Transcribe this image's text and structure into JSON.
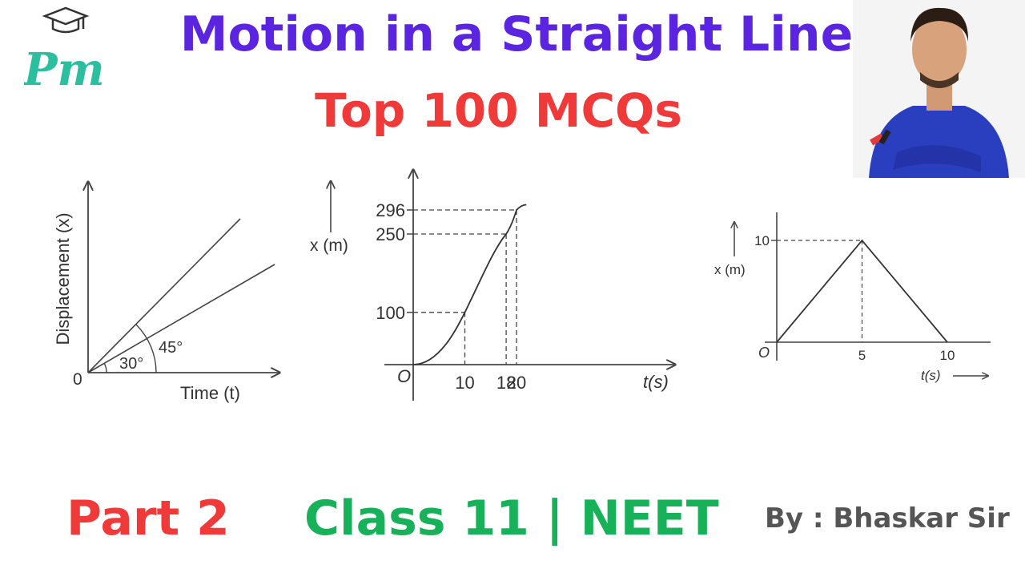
{
  "header": {
    "title": "Motion in a Straight Line",
    "subtitle": "Top 100 MCQs",
    "logo_text": "Pm"
  },
  "figures": {
    "fig1": {
      "ylabel": "Displacement (x)",
      "xlabel": "Time (t)",
      "origin": "0",
      "angles": [
        "30°",
        "45°"
      ]
    },
    "fig2": {
      "ylabel": "x (m)",
      "xlabel": "t(s)",
      "origin": "O",
      "y_ticks": [
        "100",
        "250",
        "296"
      ],
      "x_ticks": [
        "10",
        "18",
        "20"
      ]
    },
    "fig3": {
      "ylabel": "x (m)",
      "xlabel": "t(s)",
      "origin": "O",
      "y_ticks": [
        "10"
      ],
      "x_ticks": [
        "5",
        "10"
      ]
    }
  },
  "chart_data": [
    {
      "type": "line",
      "xlabel": "Time (t)",
      "ylabel": "Displacement (x)",
      "series": [
        {
          "slope_angle_deg": 45
        },
        {
          "slope_angle_deg": 30
        }
      ],
      "annotations": [
        "30°",
        "45°"
      ]
    },
    {
      "type": "line",
      "xlabel": "t(s)",
      "ylabel": "x (m)",
      "x": [
        0,
        10,
        18,
        20
      ],
      "y": [
        0,
        100,
        250,
        296
      ],
      "xlim": [
        0,
        21
      ],
      "ylim": [
        0,
        300
      ]
    },
    {
      "type": "line",
      "xlabel": "t(s)",
      "ylabel": "x (m)",
      "x": [
        0,
        5,
        10
      ],
      "y": [
        0,
        10,
        0
      ],
      "xlim": [
        0,
        11
      ],
      "ylim": [
        0,
        12
      ]
    }
  ],
  "footer": {
    "part": "Part 2",
    "class_info": "Class 11 | NEET",
    "author": "By : Bhaskar Sir"
  },
  "colors": {
    "title": "#5b24e0",
    "subtitle": "#f03a3a",
    "part": "#f03a3a",
    "class_info": "#17b15a",
    "author": "#555555",
    "logo": "#2bbfa0"
  }
}
